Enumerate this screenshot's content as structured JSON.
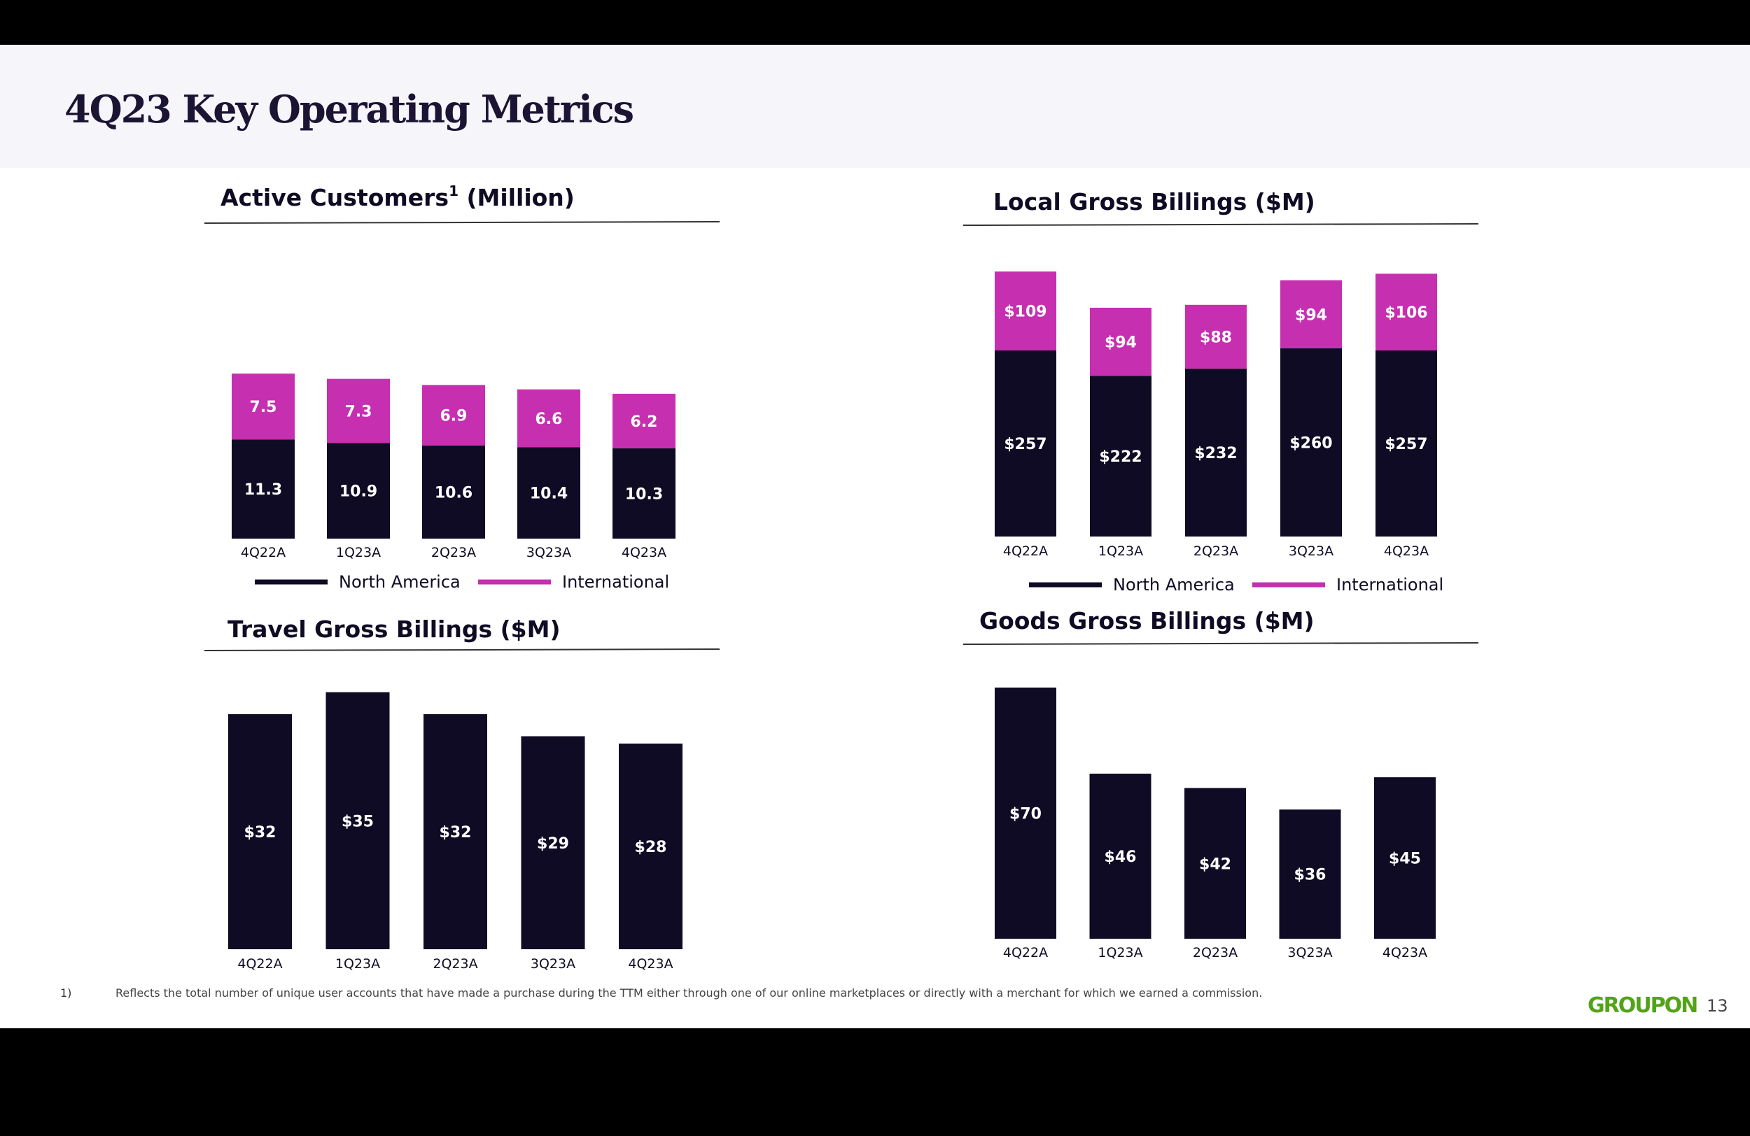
{
  "page": {
    "title": "4Q23 Key Operating Metrics",
    "page_number": "13"
  },
  "footnote": {
    "marker": "1)",
    "text": "Reflects the total number of unique user accounts that have made a purchase during the TTM either through one of our online marketplaces or directly with a merchant for which we earned a commission."
  },
  "logo": {
    "text": "GROUPON"
  },
  "colors": {
    "north_america": "#0f0b24",
    "international": "#c62fb0",
    "logo": "#53a318"
  },
  "chart_data": [
    {
      "id": "active",
      "type": "bar",
      "stacked": true,
      "title": "Active Customers",
      "title_superscript": "1",
      "title_suffix": "(Million)",
      "categories": [
        "4Q22A",
        "1Q23A",
        "2Q23A",
        "3Q23A",
        "4Q23A"
      ],
      "series": [
        {
          "name": "North America",
          "values": [
            11.3,
            10.9,
            10.6,
            10.4,
            10.3
          ],
          "labels": [
            "11.3",
            "10.9",
            "10.6",
            "10.4",
            "10.3"
          ]
        },
        {
          "name": "International",
          "values": [
            7.5,
            7.3,
            6.9,
            6.6,
            6.2
          ],
          "labels": [
            "7.5",
            "7.3",
            "6.9",
            "6.6",
            "6.2"
          ]
        }
      ],
      "legend": [
        "North America",
        "International"
      ]
    },
    {
      "id": "local",
      "type": "bar",
      "stacked": true,
      "title": "Local Gross Billings ($M)",
      "categories": [
        "4Q22A",
        "1Q23A",
        "2Q23A",
        "3Q23A",
        "4Q23A"
      ],
      "series": [
        {
          "name": "North America",
          "values": [
            257,
            222,
            232,
            260,
            257
          ],
          "labels": [
            "$257",
            "$222",
            "$232",
            "$260",
            "$257"
          ]
        },
        {
          "name": "International",
          "values": [
            109,
            94,
            88,
            94,
            106
          ],
          "labels": [
            "$109",
            "$94",
            "$88",
            "$94",
            "$106"
          ]
        }
      ],
      "legend": [
        "North America",
        "International"
      ]
    },
    {
      "id": "travel",
      "type": "bar",
      "stacked": false,
      "title": "Travel Gross Billings ($M)",
      "categories": [
        "4Q22A",
        "1Q23A",
        "2Q23A",
        "3Q23A",
        "4Q23A"
      ],
      "series": [
        {
          "name": "North America",
          "values": [
            32,
            35,
            32,
            29,
            28
          ],
          "labels": [
            "$32",
            "$35",
            "$32",
            "$29",
            "$28"
          ]
        }
      ]
    },
    {
      "id": "goods",
      "type": "bar",
      "stacked": false,
      "title": "Goods Gross Billings ($M)",
      "categories": [
        "4Q22A",
        "1Q23A",
        "2Q23A",
        "3Q23A",
        "4Q23A"
      ],
      "series": [
        {
          "name": "North America",
          "values": [
            70,
            46,
            42,
            36,
            45
          ],
          "labels": [
            "$70",
            "$46",
            "$42",
            "$36",
            "$45"
          ]
        }
      ]
    }
  ]
}
